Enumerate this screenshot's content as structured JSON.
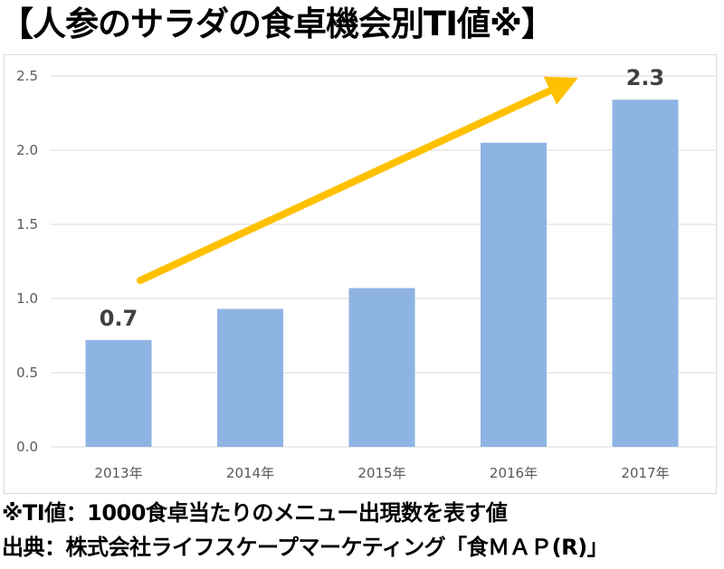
{
  "title": "【人参のサラダの食卓機会別TI値※】",
  "footnotes": {
    "note": "※TI値：1000食卓当たりのメニュー出現数を表す値",
    "source": "出典：株式会社ライフスケープマーケティング「食ＭＡＰ(R)」"
  },
  "colors": {
    "bar": "#8eb4e3",
    "trend_arrow": "#ffc000",
    "grid": "#d9d9d9"
  },
  "chart_data": {
    "type": "bar",
    "categories": [
      "2013年",
      "2014年",
      "2015年",
      "2016年",
      "2017年"
    ],
    "values": [
      0.72,
      0.93,
      1.07,
      2.05,
      2.34
    ],
    "data_labels": {
      "2013年": "0.7",
      "2017年": "2.3"
    },
    "ylim": [
      0,
      2.5
    ],
    "yticks": [
      "0.0",
      "0.5",
      "1.0",
      "1.5",
      "2.0",
      "2.5"
    ],
    "grid": true,
    "trend_arrow": "increasing, from 2013年 to 2017年"
  }
}
